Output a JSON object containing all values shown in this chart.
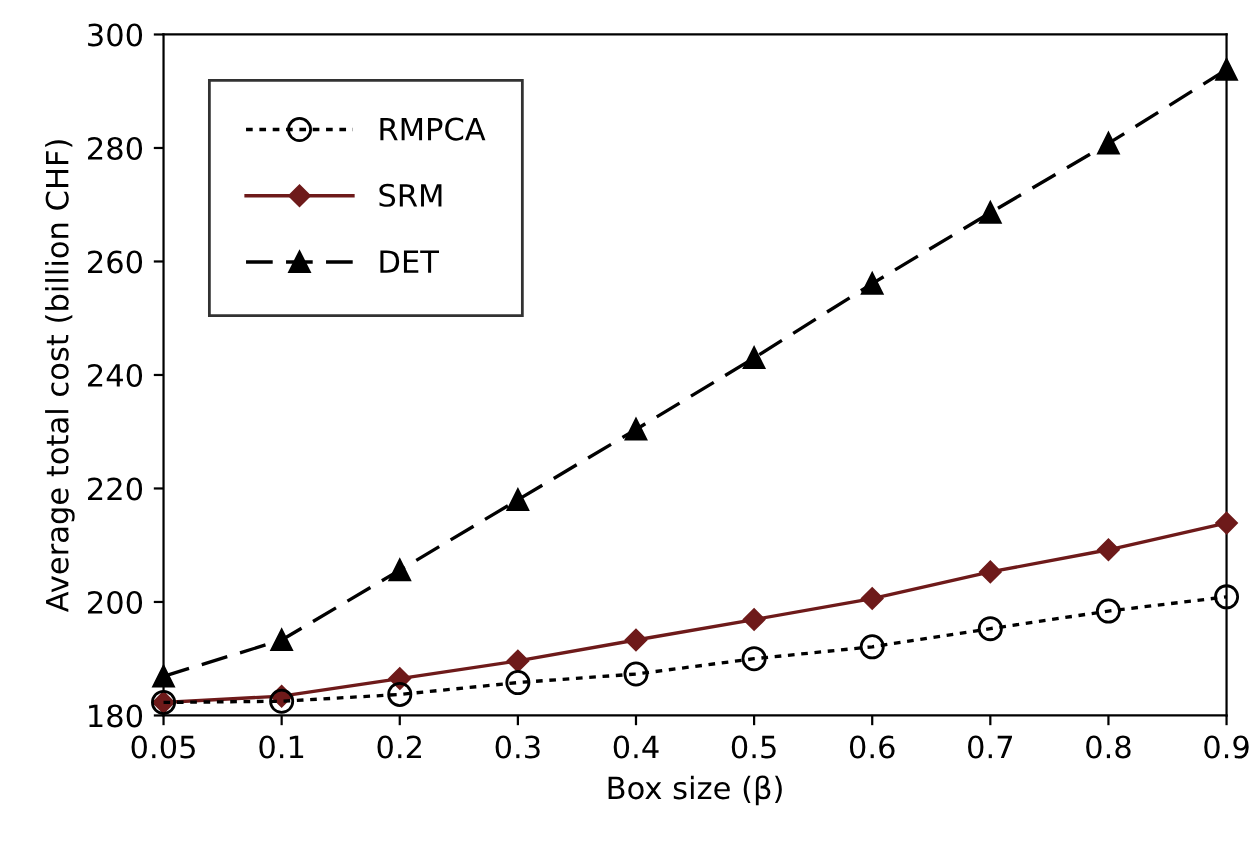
{
  "chart_data": {
    "type": "line",
    "xlabel": "Box size (β)",
    "ylabel": "Average total cost (billion CHF)",
    "categories": [
      "0.05",
      "0.1",
      "0.2",
      "0.3",
      "0.4",
      "0.5",
      "0.6",
      "0.7",
      "0.8",
      "0.9"
    ],
    "ylim": [
      180,
      300
    ],
    "yticks": [
      180,
      200,
      220,
      240,
      260,
      280,
      300
    ],
    "grid": false,
    "legend": "top left",
    "series": [
      {
        "name": "RMPCA",
        "color": "#000000",
        "marker": "circle",
        "line_style": "dotted",
        "values": [
          182.3,
          182.5,
          183.7,
          185.8,
          187.3,
          190.0,
          192.1,
          195.3,
          198.4,
          200.9
        ]
      },
      {
        "name": "SRM",
        "color": "#6e1a1a",
        "marker": "diamond",
        "line_style": "solid",
        "values": [
          182.3,
          183.4,
          186.5,
          189.6,
          193.3,
          196.9,
          200.6,
          205.3,
          209.2,
          213.9
        ]
      },
      {
        "name": "DET",
        "color": "#000000",
        "marker": "triangle",
        "line_style": "dashed",
        "values": [
          186.9,
          193.3,
          205.6,
          218.0,
          230.4,
          243.0,
          256.1,
          268.6,
          280.8,
          293.8
        ]
      }
    ]
  }
}
